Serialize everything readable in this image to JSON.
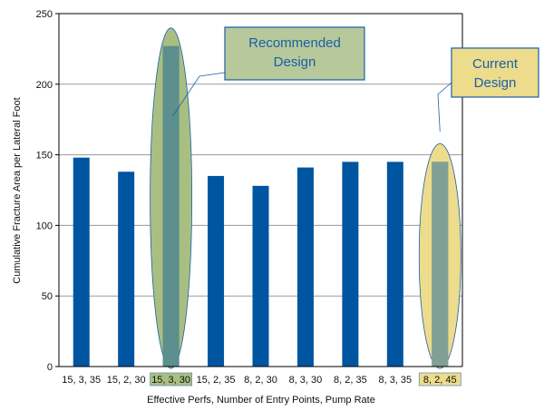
{
  "chart_data": {
    "type": "bar",
    "xlabel": "Effective Perfs, Number of Entry Points, Pump Rate",
    "ylabel": "Cumulative Fracture Area per Lateral Foot",
    "ylim": [
      0,
      250
    ],
    "yticks": [
      0,
      50,
      100,
      150,
      200,
      250
    ],
    "grid": true,
    "categories": [
      "15, 3, 35",
      "15, 2, 30",
      "15, 3, 30",
      "15, 2, 35",
      "8, 2, 30",
      "8, 3, 30",
      "8, 2, 35",
      "8, 3, 35",
      "8, 2, 45"
    ],
    "values": [
      148,
      138,
      227,
      135,
      128,
      141,
      145,
      145,
      145
    ],
    "bar_color": "#0055a0",
    "highlights": [
      {
        "category_index": 2,
        "fill": "#a9bf82",
        "label_box_fill": "#a9bf82"
      },
      {
        "category_index": 8,
        "fill": "#ecdc8c",
        "label_box_fill": "#ecdc8c"
      }
    ],
    "annotations": [
      {
        "lines": [
          "Recommended",
          "Design"
        ],
        "target_index": 2,
        "box_fill": "#b7c99a"
      },
      {
        "lines": [
          "Current",
          "Design"
        ],
        "target_index": 8,
        "box_fill": "#ecdc8c"
      }
    ]
  }
}
